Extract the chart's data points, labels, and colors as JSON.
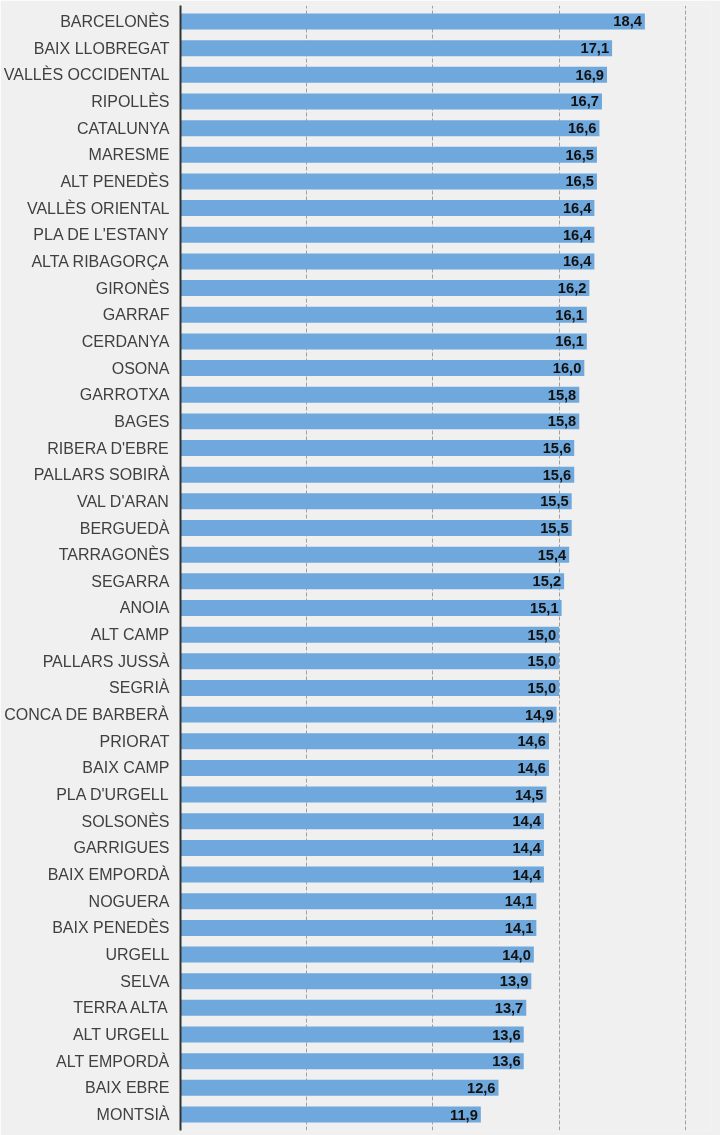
{
  "chart_data": {
    "type": "bar",
    "orientation": "horizontal",
    "categories": [
      "BARCELONÈS",
      "BAIX LLOBREGAT",
      "VALLÈS OCCIDENTAL",
      "RIPOLLÈS",
      "CATALUNYA",
      "MARESME",
      "ALT PENEDÈS",
      "VALLÈS ORIENTAL",
      "PLA DE L'ESTANY",
      "ALTA RIBAGORÇA",
      "GIRONÈS",
      "GARRAF",
      "CERDANYA",
      "OSONA",
      "GARROTXA",
      "BAGES",
      "RIBERA D'EBRE",
      "PALLARS SOBIRÀ",
      "VAL D'ARAN",
      "BERGUEDÀ",
      "TARRAGONÈS",
      "SEGARRA",
      "ANOIA",
      "ALT CAMP",
      "PALLARS JUSSÀ",
      "SEGRIÀ",
      "CONCA DE BARBERÀ",
      "PRIORAT",
      "BAIX CAMP",
      "PLA D'URGELL",
      "SOLSONÈS",
      "GARRIGUES",
      "BAIX EMPORDÀ",
      "NOGUERA",
      "BAIX PENEDÈS",
      "URGELL",
      "SELVA",
      "TERRA ALTA",
      "ALT URGELL",
      "ALT EMPORDÀ",
      "BAIX EBRE",
      "MONTSIÀ"
    ],
    "values": [
      18.4,
      17.1,
      16.9,
      16.7,
      16.6,
      16.5,
      16.5,
      16.4,
      16.4,
      16.4,
      16.2,
      16.1,
      16.1,
      16.0,
      15.8,
      15.8,
      15.6,
      15.6,
      15.5,
      15.5,
      15.4,
      15.2,
      15.1,
      15.0,
      15.0,
      15.0,
      14.9,
      14.6,
      14.6,
      14.5,
      14.4,
      14.4,
      14.4,
      14.1,
      14.1,
      14.0,
      13.9,
      13.7,
      13.6,
      13.6,
      12.6,
      11.9
    ],
    "value_labels": [
      "18,4",
      "17,1",
      "16,9",
      "16,7",
      "16,6",
      "16,5",
      "16,5",
      "16,4",
      "16,4",
      "16,4",
      "16,2",
      "16,1",
      "16,1",
      "16,0",
      "15,8",
      "15,8",
      "15,6",
      "15,6",
      "15,5",
      "15,5",
      "15,4",
      "15,2",
      "15,1",
      "15,0",
      "15,0",
      "15,0",
      "14,9",
      "14,6",
      "14,6",
      "14,5",
      "14,4",
      "14,4",
      "14,4",
      "14,1",
      "14,1",
      "14,0",
      "13,9",
      "13,7",
      "13,6",
      "13,6",
      "12,6",
      "11,9"
    ],
    "color": "#6fa8dc",
    "xlim": [
      0,
      21
    ],
    "xticks": [
      {
        "value": 5,
        "label": null
      },
      {
        "value": 10,
        "label": null
      },
      {
        "value": 15,
        "label": null
      },
      {
        "value": 20,
        "label": null
      }
    ],
    "grid": "x",
    "tick_labels": "y"
  }
}
